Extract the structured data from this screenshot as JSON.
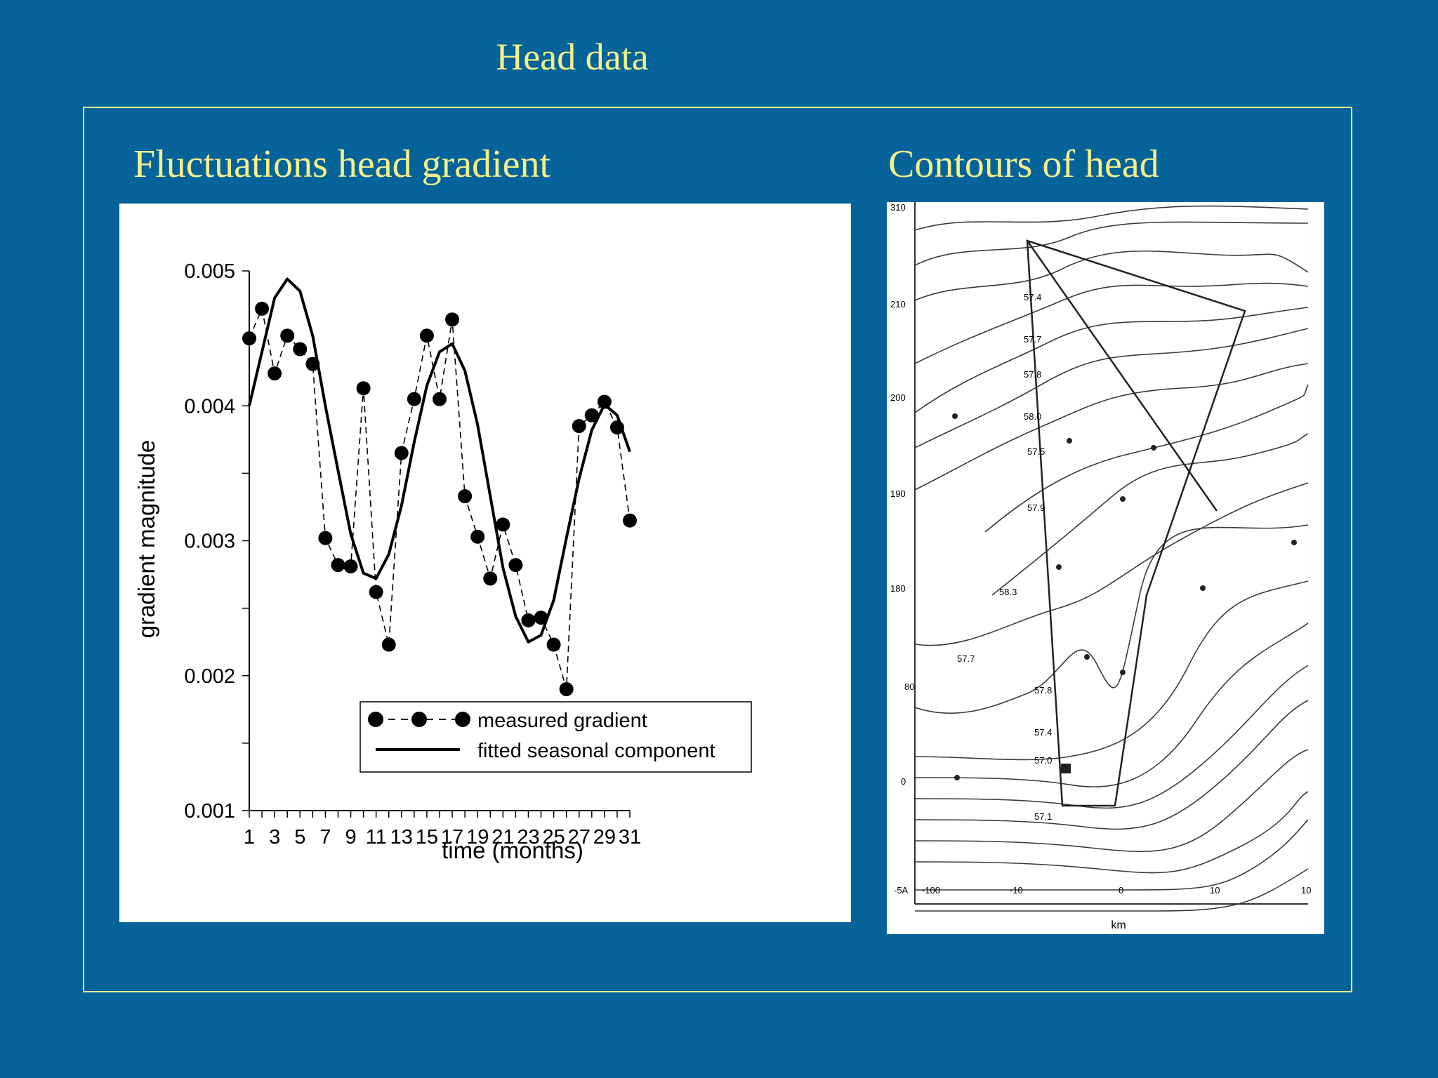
{
  "slide": {
    "title": "Head data",
    "left_panel_title": "Fluctuations head gradient",
    "right_panel_title": "Contours of head"
  },
  "colors": {
    "background": "#05639a",
    "title_text": "#f4f08a",
    "frame": "#eef08c"
  },
  "chart_data": {
    "type": "line",
    "xlabel": "time  (months)",
    "ylabel": "gradient magnitude",
    "xlim": [
      1,
      31
    ],
    "ylim": [
      0.001,
      0.005
    ],
    "x_ticks": [
      1,
      3,
      5,
      7,
      9,
      11,
      13,
      15,
      17,
      19,
      21,
      23,
      25,
      27,
      29,
      31
    ],
    "x_tick_labels": [
      "1",
      "3",
      "5",
      "7",
      "9",
      "11",
      "13",
      "15",
      "17",
      "19",
      "21",
      "23",
      "25",
      "27",
      "29",
      "31"
    ],
    "y_ticks": [
      0.001,
      0.002,
      0.003,
      0.004,
      0.005
    ],
    "y_tick_labels": [
      "0.001",
      "0.002",
      "0.003",
      "0.004",
      "0.005"
    ],
    "legend": {
      "placement": "lower-center"
    },
    "series": [
      {
        "name": "measured gradient",
        "style": "dashed-markers",
        "x": [
          1,
          2,
          3,
          4,
          5,
          6,
          7,
          8,
          9,
          10,
          11,
          12,
          13,
          14,
          15,
          16,
          17,
          18,
          19,
          20,
          21,
          22,
          23,
          24,
          25,
          26,
          27,
          28,
          29,
          30,
          31
        ],
        "y": [
          0.0045,
          0.00472,
          0.00424,
          0.00452,
          0.00442,
          0.00431,
          0.00302,
          0.00282,
          0.00281,
          0.00413,
          0.00262,
          0.00223,
          0.00365,
          0.00405,
          0.00452,
          0.00405,
          0.00464,
          0.00333,
          0.00303,
          0.00272,
          0.00312,
          0.00282,
          0.00241,
          0.00243,
          0.00223,
          0.0019,
          0.00385,
          0.00393,
          0.00403,
          0.00384,
          0.00315
        ]
      },
      {
        "name": "fitted seasonal component",
        "style": "solid",
        "x": [
          1,
          2,
          3,
          4,
          5,
          6,
          7,
          8,
          9,
          10,
          11,
          12,
          13,
          14,
          15,
          16,
          17,
          18,
          19,
          20,
          21,
          22,
          23,
          24,
          25,
          26,
          27,
          28,
          29,
          30,
          31
        ],
        "y": [
          0.004,
          0.0044,
          0.0048,
          0.00494,
          0.00485,
          0.00452,
          0.004,
          0.00352,
          0.00305,
          0.00276,
          0.00272,
          0.0029,
          0.00326,
          0.00373,
          0.00415,
          0.0044,
          0.00446,
          0.00426,
          0.00386,
          0.00333,
          0.0028,
          0.00244,
          0.00225,
          0.0023,
          0.00256,
          0.00302,
          0.00346,
          0.00382,
          0.00401,
          0.00393,
          0.00366
        ]
      }
    ]
  },
  "contour_map": {
    "contour_labels": [
      "57.4",
      "57.7",
      "57.8",
      "58.0",
      "57.5",
      "57.9",
      "58.3",
      "57.7",
      "57.8",
      "57.4",
      "57.0",
      "57.1"
    ],
    "axis_labels": [
      "310",
      "210",
      "200",
      "190",
      "180",
      "80",
      "0",
      "-5A",
      "-100",
      "-10",
      "0",
      "10",
      "10",
      "km"
    ]
  }
}
